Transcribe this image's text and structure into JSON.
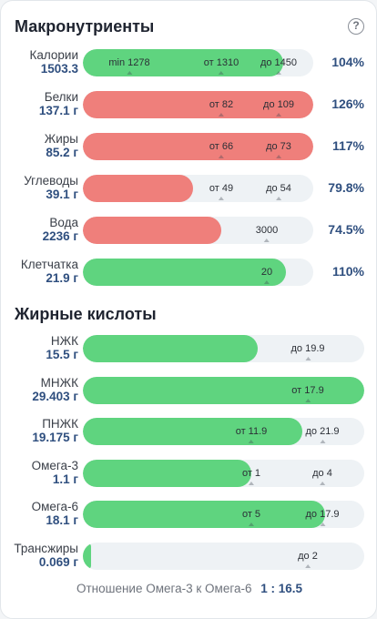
{
  "sections": {
    "macros_title": "Макронутриенты",
    "fatty_acids_title": "Жирные кислоты"
  },
  "icons": {
    "help": "help-circle-icon"
  },
  "colors": {
    "green": "#5fd47f",
    "red": "#ef7f7b",
    "track": "#eef2f5",
    "value": "#2f4f7f"
  },
  "macros": [
    {
      "name": "Калории",
      "amount": "1503.3",
      "percent": "104%",
      "status": "green",
      "fill_fraction": 0.87,
      "markers": [
        {
          "text": "min 1278",
          "frac": 0.2
        },
        {
          "text": "от 1310",
          "frac": 0.6
        },
        {
          "text": "до 1450",
          "frac": 0.85
        }
      ]
    },
    {
      "name": "Белки",
      "amount": "137.1 г",
      "percent": "126%",
      "status": "red",
      "fill_fraction": 1.0,
      "markers": [
        {
          "text": "от 82",
          "frac": 0.6
        },
        {
          "text": "до 109",
          "frac": 0.85
        }
      ]
    },
    {
      "name": "Жиры",
      "amount": "85.2 г",
      "percent": "117%",
      "status": "red",
      "fill_fraction": 1.0,
      "markers": [
        {
          "text": "от 66",
          "frac": 0.6
        },
        {
          "text": "до 73",
          "frac": 0.85
        }
      ]
    },
    {
      "name": "Углеводы",
      "amount": "39.1 г",
      "percent": "79.8%",
      "status": "red",
      "fill_fraction": 0.48,
      "markers": [
        {
          "text": "от 49",
          "frac": 0.6
        },
        {
          "text": "до 54",
          "frac": 0.85
        }
      ]
    },
    {
      "name": "Вода",
      "amount": "2236 г",
      "percent": "74.5%",
      "status": "red",
      "fill_fraction": 0.6,
      "markers": [
        {
          "text": "3000",
          "frac": 0.8
        }
      ]
    },
    {
      "name": "Клетчатка",
      "amount": "21.9 г",
      "percent": "110%",
      "status": "green",
      "fill_fraction": 0.88,
      "markers": [
        {
          "text": "20",
          "frac": 0.8
        }
      ]
    }
  ],
  "fatty_acids": [
    {
      "name": "НЖК",
      "amount": "15.5 г",
      "status": "green",
      "fill_fraction": 0.62,
      "markers": [
        {
          "text": "до 19.9",
          "frac": 0.8
        }
      ]
    },
    {
      "name": "МНЖК",
      "amount": "29.403 г",
      "status": "green",
      "fill_fraction": 1.0,
      "markers": [
        {
          "text": "от 17.9",
          "frac": 0.8
        }
      ]
    },
    {
      "name": "ПНЖК",
      "amount": "19.175 г",
      "status": "green",
      "fill_fraction": 0.78,
      "markers": [
        {
          "text": "от 11.9",
          "frac": 0.6
        },
        {
          "text": "до 21.9",
          "frac": 0.85
        }
      ]
    },
    {
      "name": "Омега-3",
      "amount": "1.1 г",
      "status": "green",
      "fill_fraction": 0.6,
      "markers": [
        {
          "text": "от 1",
          "frac": 0.6
        },
        {
          "text": "до 4",
          "frac": 0.85
        }
      ]
    },
    {
      "name": "Омега-6",
      "amount": "18.1 г",
      "status": "green",
      "fill_fraction": 0.86,
      "markers": [
        {
          "text": "от 5",
          "frac": 0.6
        },
        {
          "text": "до 17.9",
          "frac": 0.85
        }
      ]
    },
    {
      "name": "Трансжиры",
      "amount": "0.069 г",
      "status": "green",
      "fill_fraction": 0.03,
      "markers": [
        {
          "text": "до 2",
          "frac": 0.8
        }
      ]
    }
  ],
  "ratio": {
    "label": "Отношение Омега-3 к Омега-6",
    "value": "1 : 16.5"
  }
}
